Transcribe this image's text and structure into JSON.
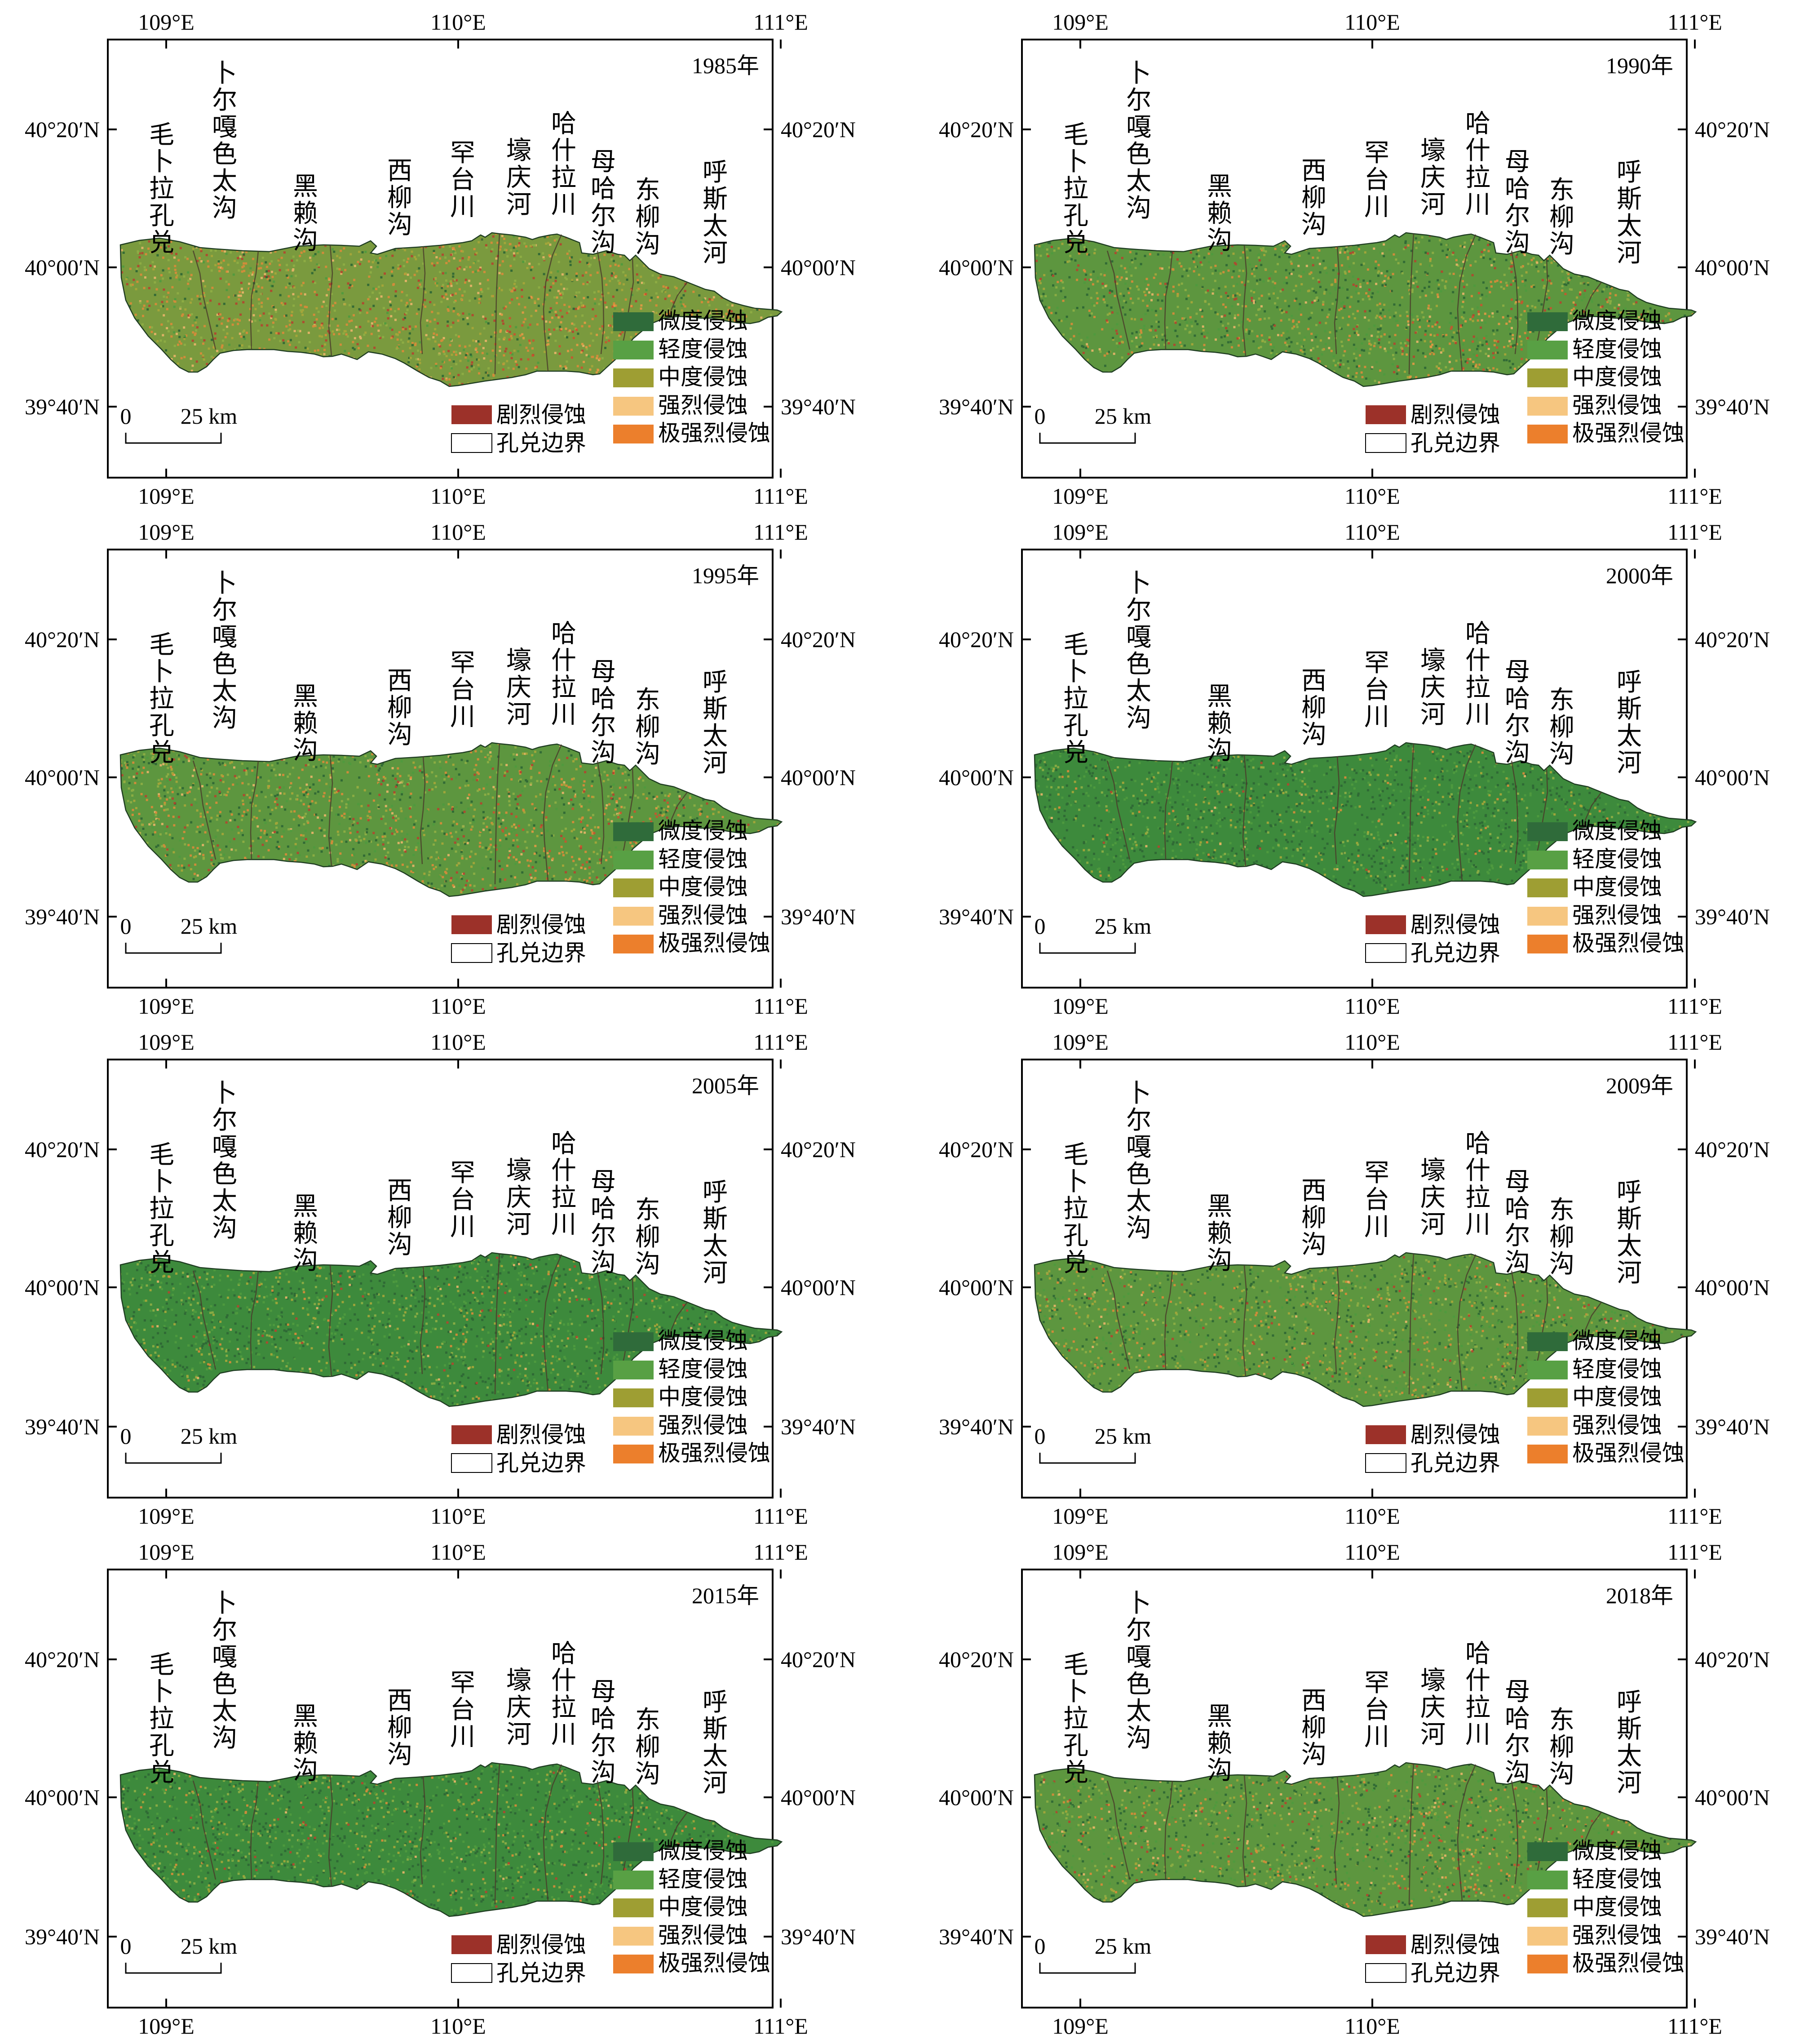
{
  "axis_labels": {
    "lon": [
      "109°E",
      "110°E",
      "111°E"
    ],
    "lat": [
      "40°20′N",
      "40°00′N",
      "39°40′N"
    ]
  },
  "tributaries": [
    {
      "name": "毛卜拉孔兑",
      "chars": [
        "毛",
        "卜",
        "拉",
        "孔",
        "兑"
      ]
    },
    {
      "name": "卜尔嘎色太沟",
      "chars": [
        "卜",
        "尔",
        "嘎",
        "色",
        "太",
        "沟"
      ]
    },
    {
      "name": "黑赖沟",
      "chars": [
        "黑",
        "赖",
        "沟"
      ]
    },
    {
      "name": "西柳沟",
      "chars": [
        "西",
        "柳",
        "沟"
      ]
    },
    {
      "name": "罕台川",
      "chars": [
        "罕",
        "台",
        "川"
      ]
    },
    {
      "name": "壕庆河",
      "chars": [
        "壕",
        "庆",
        "河"
      ]
    },
    {
      "name": "哈什拉川",
      "chars": [
        "哈",
        "什",
        "拉",
        "川"
      ]
    },
    {
      "name": "母哈尔沟",
      "chars": [
        "母",
        "哈",
        "尔",
        "沟"
      ]
    },
    {
      "name": "东柳沟",
      "chars": [
        "东",
        "柳",
        "沟"
      ]
    },
    {
      "name": "呼斯太河",
      "chars": [
        "呼",
        "斯",
        "太",
        "河"
      ]
    }
  ],
  "legend": [
    {
      "label": "微度侵蚀",
      "color": "#2f6b3a"
    },
    {
      "label": "轻度侵蚀",
      "color": "#58a044"
    },
    {
      "label": "中度侵蚀",
      "color": "#9e9e33"
    },
    {
      "label": "剧烈侵蚀",
      "color": "#9c3129"
    },
    {
      "label": "强烈侵蚀",
      "color": "#f6c680"
    },
    {
      "label": "极强烈侵蚀",
      "color": "#ec7f2c"
    },
    {
      "label": "孔兑边界",
      "color": "#ffffff"
    }
  ],
  "scale_bar": {
    "start": "0",
    "end": "25 km"
  },
  "panels": [
    {
      "year": "1985年",
      "mix": [
        0.55,
        0.3,
        0.15
      ]
    },
    {
      "year": "1990年",
      "mix": [
        0.35,
        0.3,
        0.35
      ]
    },
    {
      "year": "1995年",
      "mix": [
        0.4,
        0.3,
        0.3
      ]
    },
    {
      "year": "2000年",
      "mix": [
        0.05,
        0.25,
        0.7
      ]
    },
    {
      "year": "2005年",
      "mix": [
        0.1,
        0.3,
        0.6
      ]
    },
    {
      "year": "2009年",
      "mix": [
        0.2,
        0.35,
        0.45
      ]
    },
    {
      "year": "2015年",
      "mix": [
        0.1,
        0.3,
        0.6
      ]
    },
    {
      "year": "2018年",
      "mix": [
        0.25,
        0.3,
        0.45
      ]
    }
  ]
}
